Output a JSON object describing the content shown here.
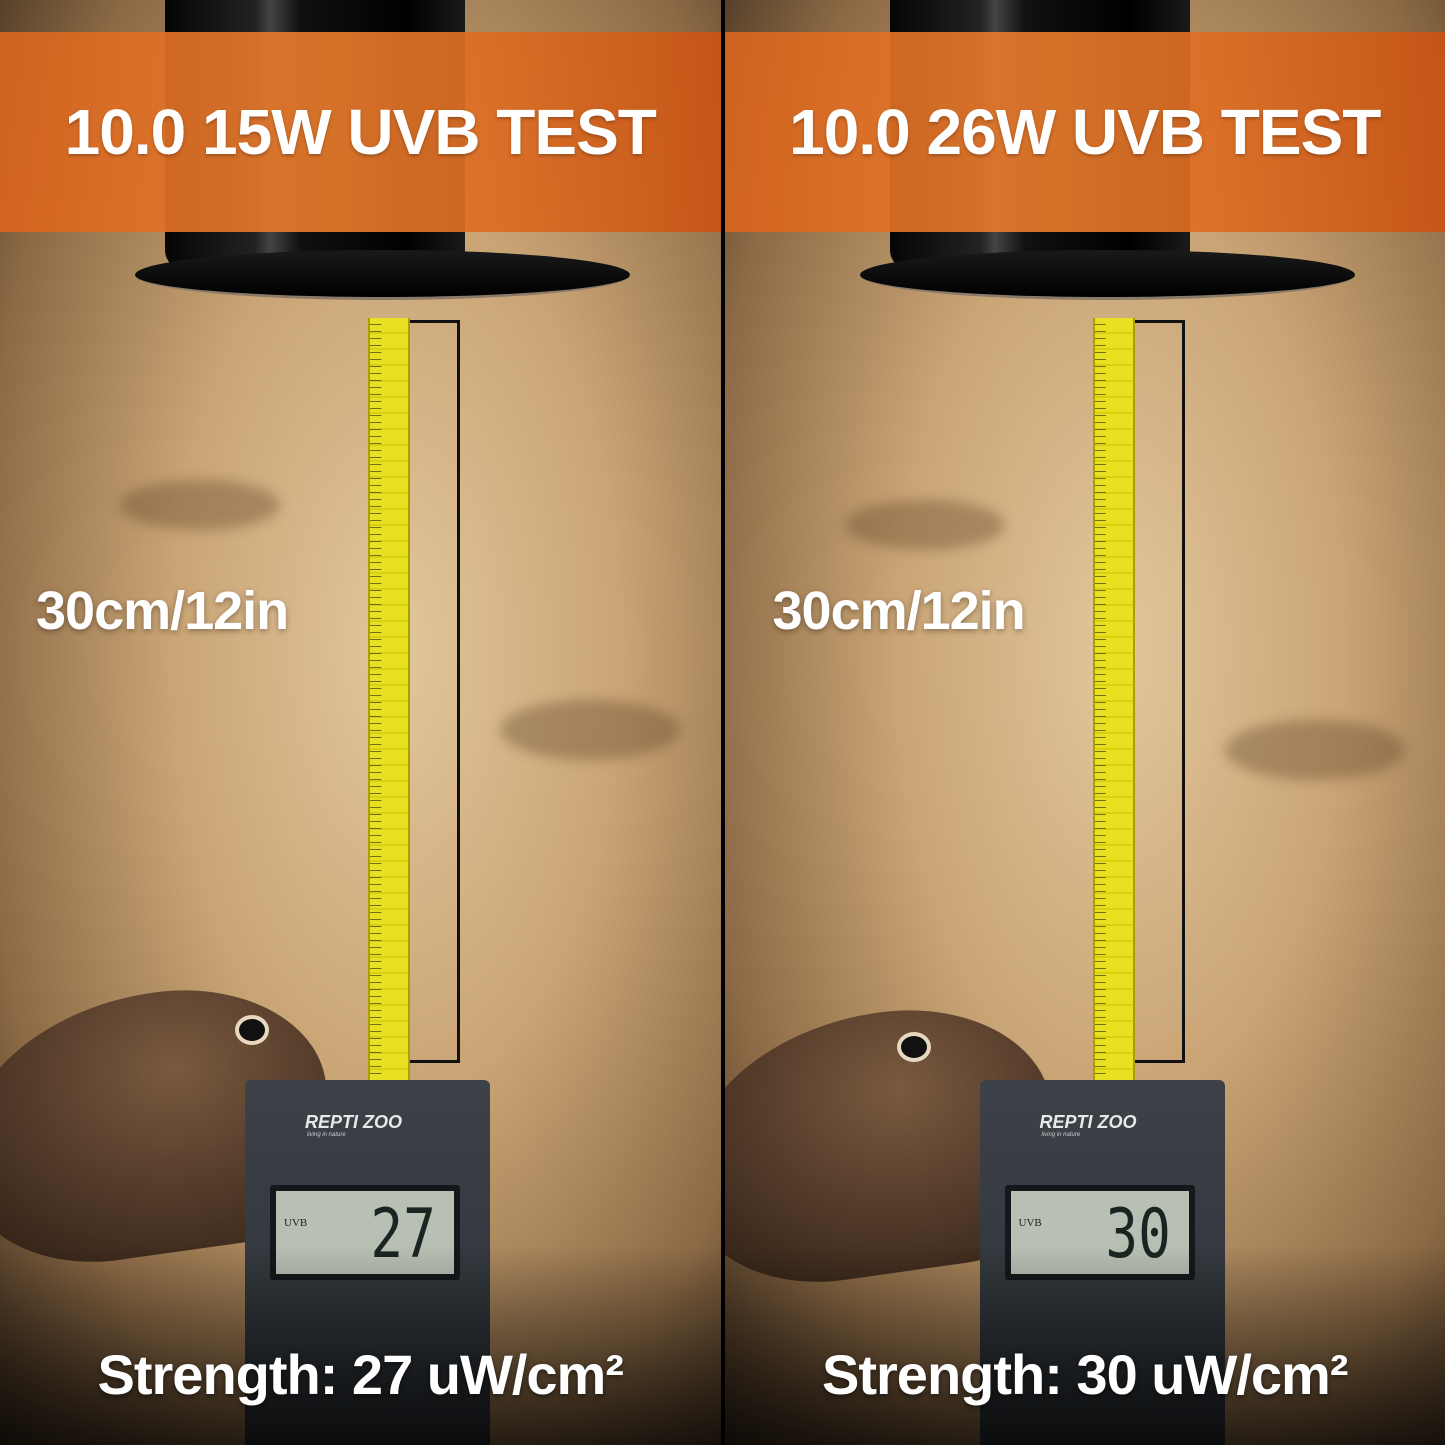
{
  "panels": [
    {
      "title": "10.0 15W UVB TEST",
      "distance": "30cm/12in",
      "meter_brand": "REPTI ZOO",
      "meter_tagline": "living in nature",
      "display_label": "UVB",
      "reading": "27",
      "strength": "Strength: 27 uW/cm²"
    },
    {
      "title": "10.0 26W UVB TEST",
      "distance": "30cm/12in",
      "meter_brand": "REPTI ZOO",
      "meter_tagline": "living in nature",
      "display_label": "UVB",
      "reading": "30",
      "strength": "Strength: 30 uW/cm²"
    }
  ],
  "colors": {
    "banner": "#e07a2a",
    "tape": "#e8e020",
    "text": "#ffffff"
  }
}
